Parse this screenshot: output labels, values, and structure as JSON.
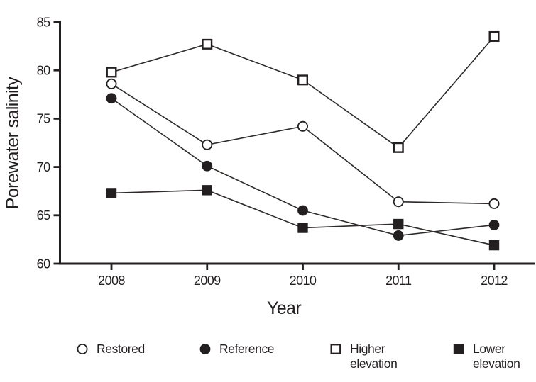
{
  "chart_data": {
    "type": "line",
    "title": "",
    "xlabel": "Year",
    "ylabel": "Porewater salinity",
    "x": [
      2008,
      2009,
      2010,
      2011,
      2012
    ],
    "ylim": [
      60,
      85
    ],
    "yticks": [
      60,
      65,
      70,
      75,
      80,
      85
    ],
    "grid": false,
    "legend_position": "bottom",
    "series": [
      {
        "name": "Restored",
        "marker": "open-circle",
        "values": [
          78.6,
          72.3,
          74.2,
          66.4,
          66.2
        ]
      },
      {
        "name": "Reference",
        "marker": "filled-circle",
        "values": [
          77.1,
          70.1,
          65.5,
          62.9,
          64.0
        ]
      },
      {
        "name": "Higher elevation",
        "marker": "open-square",
        "values": [
          79.8,
          82.7,
          79.0,
          72.0,
          83.5
        ]
      },
      {
        "name": "Lower elevation",
        "marker": "filled-square",
        "values": [
          67.3,
          67.6,
          63.7,
          64.1,
          61.9
        ]
      }
    ],
    "colors": {
      "foreground": "#231f20",
      "line": "#2d2a29",
      "background": "#ffffff"
    }
  },
  "legend": {
    "items": [
      {
        "label": "Restored",
        "marker": "open-circle"
      },
      {
        "label": "Reference",
        "marker": "filled-circle"
      },
      {
        "label": "Higher\nelevation",
        "marker": "open-square"
      },
      {
        "label": "Lower\nelevation",
        "marker": "filled-square"
      }
    ]
  }
}
